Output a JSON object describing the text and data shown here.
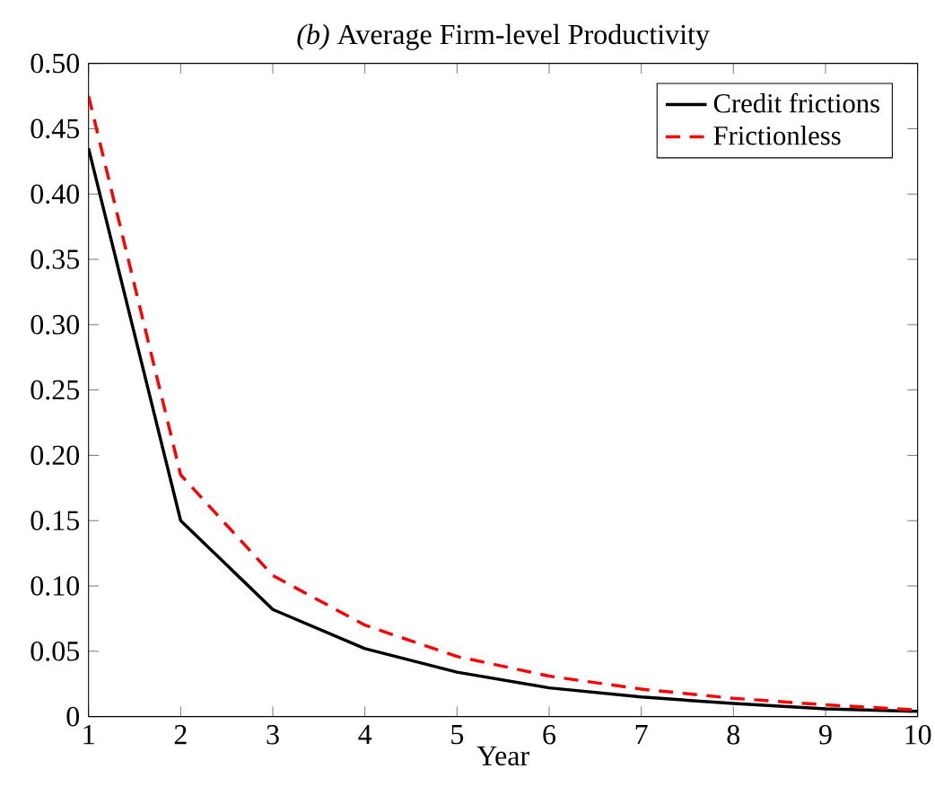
{
  "chart_data": {
    "type": "line",
    "title": "*(b)* Average Firm-level Productivity",
    "xlabel": "Year",
    "x": [
      1,
      2,
      3,
      4,
      5,
      6,
      7,
      8,
      9,
      10
    ],
    "series": [
      {
        "name": "Credit frictions",
        "color": "#000000",
        "line_style": "solid",
        "values": [
          0.435,
          0.15,
          0.082,
          0.052,
          0.034,
          0.022,
          0.015,
          0.01,
          0.006,
          0.004
        ]
      },
      {
        "name": "Frictionless",
        "color": "#ff0000",
        "line_style": "dashed",
        "values": [
          0.475,
          0.185,
          0.108,
          0.07,
          0.046,
          0.031,
          0.021,
          0.014,
          0.009,
          0.005
        ]
      }
    ],
    "xlim": [
      1,
      10
    ],
    "xticks": [
      1,
      2,
      3,
      4,
      5,
      6,
      7,
      8,
      9,
      10
    ],
    "ylim": [
      0,
      0.5
    ],
    "yticks": [
      0,
      {
        "value": 0.05,
        "label": "0.05"
      },
      {
        "value": 0.1,
        "label": "0.10"
      },
      {
        "value": 0.15,
        "label": "0.15"
      },
      {
        "value": 0.2,
        "label": "0.20"
      },
      {
        "value": 0.25,
        "label": "0.25"
      },
      {
        "value": 0.3,
        "label": "0.30"
      },
      {
        "value": 0.35,
        "label": "0.35"
      },
      {
        "value": 0.4,
        "label": "0.40"
      },
      {
        "value": 0.45,
        "label": "0.45"
      },
      {
        "value": 0.5,
        "label": "0.50"
      }
    ],
    "legend": "top right",
    "grid": false,
    "marker": "none"
  }
}
